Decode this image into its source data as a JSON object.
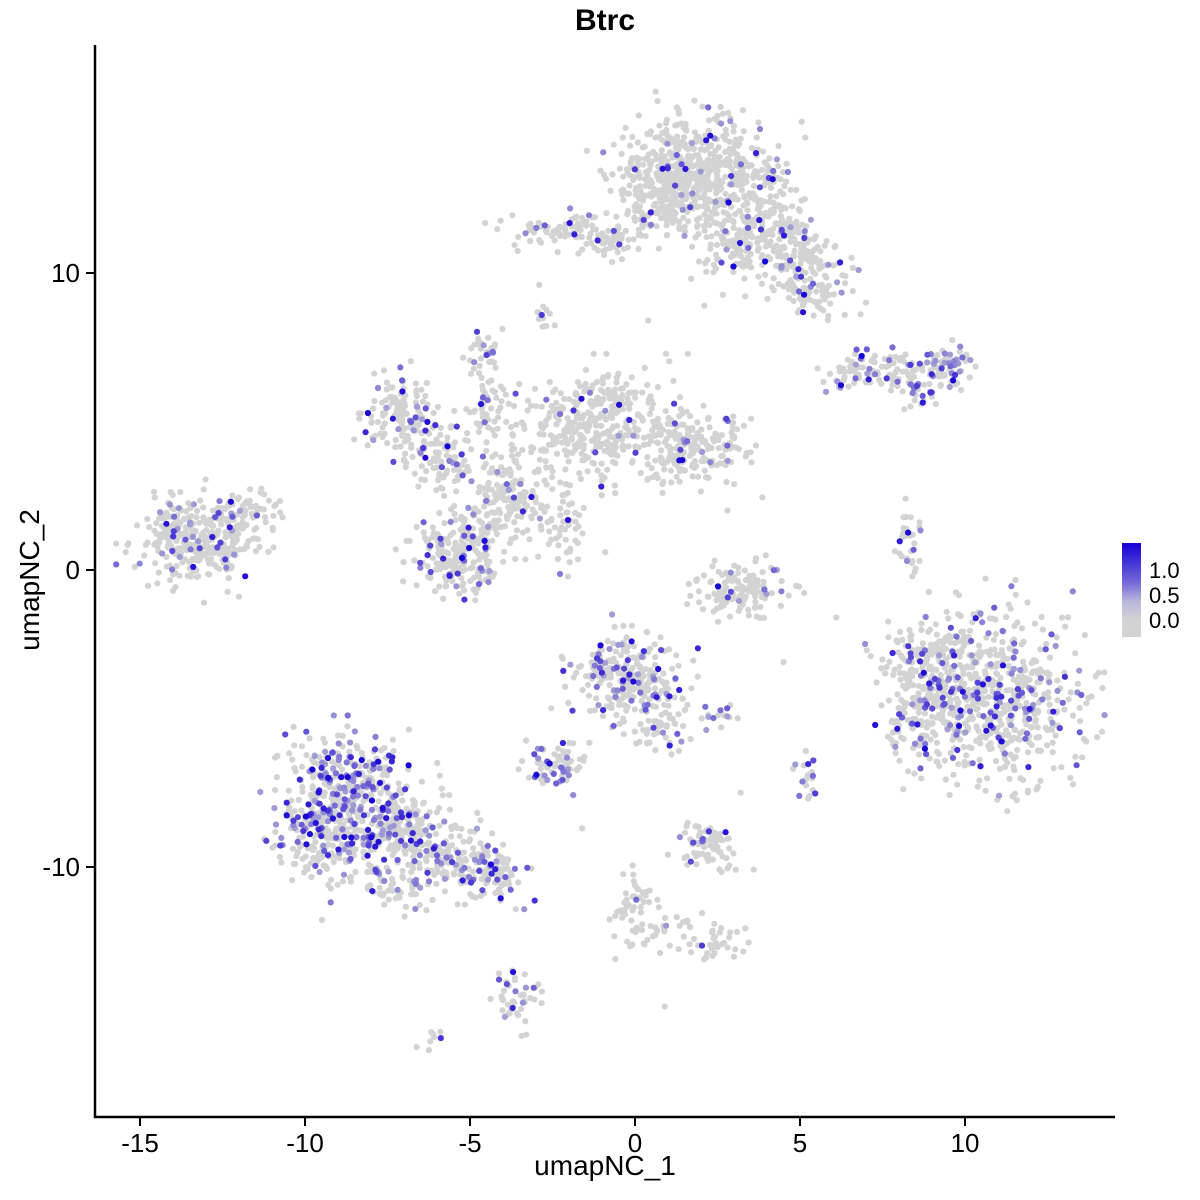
{
  "chart_data": {
    "type": "scatter",
    "title": "Btrc",
    "xlabel": "umapNC_1",
    "ylabel": "umapNC_2",
    "x_ticks": [
      -15,
      -10,
      -5,
      0,
      5,
      10
    ],
    "y_ticks": [
      -10,
      0,
      10
    ],
    "xlim": [
      -16.4,
      14.5
    ],
    "ylim": [
      -18.4,
      17.7
    ],
    "grid": false,
    "legend_position": "right",
    "legend": {
      "labels": [
        "1.0",
        "0.5",
        "0.0"
      ]
    },
    "colors": {
      "low": "#D3D3D3",
      "high": "#1500D6"
    },
    "point_radius": 3.1,
    "seed": 42,
    "clusters": [
      {
        "x": 1.8,
        "y": 13.6,
        "sx": 1.2,
        "sy": 0.9,
        "n": 480,
        "frac": 0.06
      },
      {
        "x": 0.8,
        "y": 12.5,
        "sx": 0.8,
        "sy": 0.6,
        "n": 140,
        "frac": 0.05
      },
      {
        "x": 3.4,
        "y": 12.1,
        "sx": 0.9,
        "sy": 0.7,
        "n": 160,
        "frac": 0.08
      },
      {
        "x": 4.6,
        "y": 10.9,
        "sx": 0.7,
        "sy": 0.6,
        "n": 120,
        "frac": 0.08
      },
      {
        "x": 5.3,
        "y": 9.6,
        "sx": 0.7,
        "sy": 0.6,
        "n": 110,
        "frac": 0.12
      },
      {
        "x": 2.9,
        "y": 10.8,
        "sx": 0.5,
        "sy": 0.6,
        "n": 60,
        "frac": 0.05
      },
      {
        "x": -2.2,
        "y": 11.4,
        "sx": 0.9,
        "sy": 0.3,
        "n": 90,
        "frac": 0.08
      },
      {
        "x": -0.6,
        "y": 11.1,
        "sx": 0.4,
        "sy": 0.3,
        "n": 35,
        "frac": 0.05
      },
      {
        "x": -2.8,
        "y": 8.7,
        "sx": 0.15,
        "sy": 0.3,
        "n": 12,
        "frac": 0.1
      },
      {
        "x": -4.6,
        "y": 7.3,
        "sx": 0.25,
        "sy": 0.4,
        "n": 28,
        "frac": 0.35
      },
      {
        "x": 7.7,
        "y": 6.7,
        "sx": 1.0,
        "sy": 0.35,
        "n": 120,
        "frac": 0.2
      },
      {
        "x": 9.4,
        "y": 6.9,
        "sx": 0.4,
        "sy": 0.3,
        "n": 55,
        "frac": 0.5
      },
      {
        "x": 8.7,
        "y": 5.9,
        "sx": 0.3,
        "sy": 0.3,
        "n": 25,
        "frac": 0.3
      },
      {
        "x": -7.1,
        "y": 5.2,
        "sx": 0.55,
        "sy": 0.75,
        "n": 140,
        "frac": 0.12
      },
      {
        "x": -5.9,
        "y": 3.7,
        "sx": 0.55,
        "sy": 0.6,
        "n": 80,
        "frac": 0.1
      },
      {
        "x": -4.5,
        "y": 5.6,
        "sx": 0.35,
        "sy": 0.5,
        "n": 45,
        "frac": 0.1
      },
      {
        "x": -1.2,
        "y": 4.9,
        "sx": 1.0,
        "sy": 0.85,
        "n": 330,
        "frac": 0.05
      },
      {
        "x": 1.6,
        "y": 4.2,
        "sx": 0.9,
        "sy": 0.6,
        "n": 210,
        "frac": 0.06
      },
      {
        "x": -3.9,
        "y": 2.5,
        "sx": 0.65,
        "sy": 0.65,
        "n": 150,
        "frac": 0.08
      },
      {
        "x": -5.3,
        "y": 0.6,
        "sx": 0.75,
        "sy": 0.75,
        "n": 240,
        "frac": 0.1
      },
      {
        "x": -2.2,
        "y": 1.4,
        "sx": 0.4,
        "sy": 0.7,
        "n": 45,
        "frac": 0.05
      },
      {
        "x": -2.3,
        "y": 3.9,
        "sx": 2.2,
        "sy": 1.3,
        "n": 60,
        "frac": 0.03
      },
      {
        "x": -13.2,
        "y": 1.0,
        "sx": 0.9,
        "sy": 0.75,
        "n": 320,
        "frac": 0.08
      },
      {
        "x": -11.7,
        "y": 1.9,
        "sx": 0.5,
        "sy": 0.35,
        "n": 55,
        "frac": 0.08
      },
      {
        "x": 8.3,
        "y": 0.8,
        "sx": 0.15,
        "sy": 0.55,
        "n": 30,
        "frac": 0.15
      },
      {
        "x": 3.3,
        "y": -0.7,
        "sx": 0.75,
        "sy": 0.5,
        "n": 130,
        "frac": 0.06
      },
      {
        "x": 10.8,
        "y": -4.2,
        "sx": 1.35,
        "sy": 1.4,
        "n": 680,
        "frac": 0.18
      },
      {
        "x": 8.6,
        "y": -4.6,
        "sx": 0.5,
        "sy": 0.95,
        "n": 120,
        "frac": 0.15
      },
      {
        "x": 9.0,
        "y": -2.9,
        "sx": 0.8,
        "sy": 0.5,
        "n": 80,
        "frac": 0.12
      },
      {
        "x": -0.3,
        "y": -3.6,
        "sx": 0.8,
        "sy": 0.75,
        "n": 250,
        "frac": 0.22
      },
      {
        "x": 0.9,
        "y": -5.2,
        "sx": 0.45,
        "sy": 0.6,
        "n": 60,
        "frac": 0.15
      },
      {
        "x": 2.5,
        "y": -4.9,
        "sx": 0.4,
        "sy": 0.2,
        "n": 15,
        "frac": 0.2
      },
      {
        "x": -2.4,
        "y": -6.6,
        "sx": 0.5,
        "sy": 0.35,
        "n": 70,
        "frac": 0.3
      },
      {
        "x": 5.2,
        "y": -7.0,
        "sx": 0.2,
        "sy": 0.4,
        "n": 18,
        "frac": 0.45
      },
      {
        "x": -8.8,
        "y": -7.0,
        "sx": 0.85,
        "sy": 0.75,
        "n": 240,
        "frac": 0.3
      },
      {
        "x": -9.4,
        "y": -8.7,
        "sx": 0.8,
        "sy": 0.7,
        "n": 240,
        "frac": 0.3
      },
      {
        "x": -7.3,
        "y": -8.6,
        "sx": 0.9,
        "sy": 0.75,
        "n": 220,
        "frac": 0.25
      },
      {
        "x": -5.8,
        "y": -9.7,
        "sx": 0.8,
        "sy": 0.6,
        "n": 150,
        "frac": 0.2
      },
      {
        "x": -4.3,
        "y": -10.3,
        "sx": 0.5,
        "sy": 0.4,
        "n": 85,
        "frac": 0.25
      },
      {
        "x": -7.6,
        "y": -10.6,
        "sx": 1.1,
        "sy": 0.5,
        "n": 60,
        "frac": 0.08
      },
      {
        "x": 2.3,
        "y": -9.3,
        "sx": 0.5,
        "sy": 0.4,
        "n": 80,
        "frac": 0.1
      },
      {
        "x": 0.0,
        "y": -11.4,
        "sx": 0.35,
        "sy": 0.6,
        "n": 55,
        "frac": 0.08
      },
      {
        "x": 2.4,
        "y": -12.6,
        "sx": 0.5,
        "sy": 0.3,
        "n": 35,
        "frac": 0.08
      },
      {
        "x": 1.1,
        "y": -12.1,
        "sx": 0.6,
        "sy": 0.3,
        "n": 18,
        "frac": 0.05
      },
      {
        "x": -3.6,
        "y": -14.3,
        "sx": 0.3,
        "sy": 0.55,
        "n": 45,
        "frac": 0.2
      },
      {
        "x": -6.2,
        "y": -15.8,
        "sx": 0.25,
        "sy": 0.15,
        "n": 8,
        "frac": 0.1
      }
    ],
    "stray_points": [
      [
        -2.9,
        9.6
      ],
      [
        0.4,
        8.4
      ],
      [
        2.1,
        8.9
      ],
      [
        8.2,
        2.4
      ],
      [
        6.1,
        -1.6
      ],
      [
        4.5,
        -3.1
      ],
      [
        -1.6,
        -8.7
      ],
      [
        3.2,
        -7.5
      ],
      [
        0.9,
        -14.7
      ],
      [
        -0.6,
        -13.1
      ],
      [
        -12.0,
        -0.9
      ],
      [
        7.0,
        9.0
      ],
      [
        2.8,
        2.0
      ],
      [
        -0.9,
        0.6
      ]
    ]
  }
}
